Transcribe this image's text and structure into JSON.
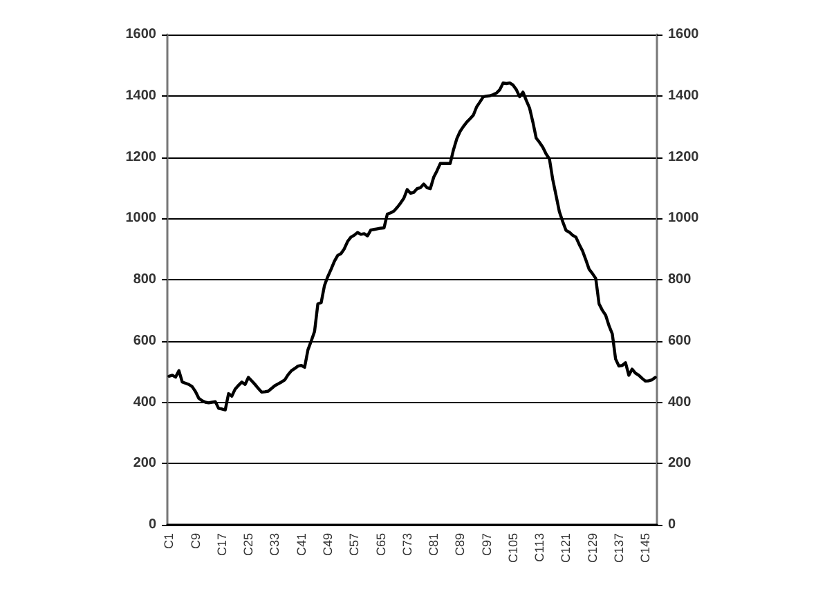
{
  "chart_data": {
    "type": "line",
    "categories": [
      "C1",
      null,
      null,
      null,
      null,
      null,
      null,
      null,
      "C9",
      null,
      null,
      null,
      null,
      null,
      null,
      null,
      "C17",
      null,
      null,
      null,
      null,
      null,
      null,
      null,
      "C25",
      null,
      null,
      null,
      null,
      null,
      null,
      null,
      "C33",
      null,
      null,
      null,
      null,
      null,
      null,
      null,
      "C41",
      null,
      null,
      null,
      null,
      null,
      null,
      null,
      "C49",
      null,
      null,
      null,
      null,
      null,
      null,
      null,
      "C57",
      null,
      null,
      null,
      null,
      null,
      null,
      null,
      "C65",
      null,
      null,
      null,
      null,
      null,
      null,
      null,
      "C73",
      null,
      null,
      null,
      null,
      null,
      null,
      null,
      "C81",
      null,
      null,
      null,
      null,
      null,
      null,
      null,
      "C89",
      null,
      null,
      null,
      null,
      null,
      null,
      null,
      "C97",
      null,
      null,
      null,
      null,
      null,
      null,
      null,
      "C105",
      null,
      null,
      null,
      null,
      null,
      null,
      null,
      "C113",
      null,
      null,
      null,
      null,
      null,
      null,
      null,
      "C121",
      null,
      null,
      null,
      null,
      null,
      null,
      null,
      "C129",
      null,
      null,
      null,
      null,
      null,
      null,
      null,
      "C137",
      null,
      null,
      null,
      null,
      null,
      null,
      null,
      "C145",
      null,
      null,
      null
    ],
    "series": [
      {
        "color": "#000000",
        "values": [
          485,
          488,
          482,
          503,
          466,
          462,
          458,
          451,
          435,
          413,
          405,
          400,
          398,
          400,
          402,
          380,
          378,
          375,
          428,
          420,
          443,
          455,
          466,
          458,
          481,
          470,
          458,
          445,
          433,
          434,
          436,
          445,
          454,
          460,
          466,
          473,
          490,
          503,
          510,
          518,
          520,
          514,
          571,
          600,
          631,
          721,
          725,
          781,
          810,
          834,
          860,
          879,
          885,
          901,
          925,
          939,
          945,
          954,
          948,
          950,
          943,
          962,
          964,
          966,
          968,
          969,
          1014,
          1018,
          1024,
          1036,
          1050,
          1066,
          1094,
          1082,
          1085,
          1097,
          1100,
          1112,
          1100,
          1097,
          1134,
          1155,
          1179,
          1179,
          1179,
          1179,
          1224,
          1260,
          1284,
          1300,
          1314,
          1325,
          1337,
          1364,
          1380,
          1397,
          1399,
          1400,
          1404,
          1409,
          1420,
          1442,
          1440,
          1442,
          1435,
          1420,
          1397,
          1412,
          1385,
          1360,
          1314,
          1262,
          1248,
          1232,
          1210,
          1194,
          1127,
          1075,
          1022,
          990,
          961,
          955,
          945,
          939,
          915,
          894,
          865,
          834,
          820,
          804,
          721,
          700,
          684,
          650,
          623,
          541,
          518,
          520,
          529,
          488,
          508,
          495,
          488,
          478,
          469,
          470,
          473,
          481
        ]
      }
    ],
    "ylim": [
      0,
      1600
    ],
    "yticks": [
      0,
      200,
      400,
      600,
      800,
      1000,
      1200,
      1400,
      1600
    ],
    "y2lim": [
      0,
      1600
    ],
    "y2ticks": [
      0,
      200,
      400,
      600,
      800,
      1000,
      1200,
      1400,
      1600
    ],
    "grid": "y",
    "line_style": "solid"
  }
}
